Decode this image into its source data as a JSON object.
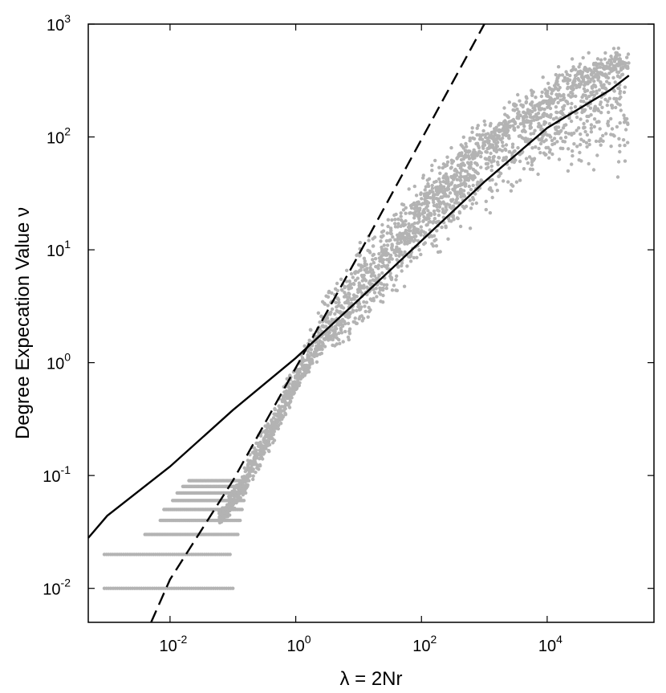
{
  "chart_data": {
    "type": "scatter",
    "title": "",
    "xlabel": "λ = 2Nr",
    "ylabel": "Degree Expecation Value ν",
    "x_scale": "log",
    "y_scale": "log",
    "xlim": [
      0.0005,
      500000
    ],
    "ylim": [
      0.005,
      1000
    ],
    "grid": false,
    "legend": "none",
    "x_ticks": [
      {
        "base": "10",
        "exp": "-2",
        "value": 0.01
      },
      {
        "base": "10",
        "exp": "0",
        "value": 1
      },
      {
        "base": "10",
        "exp": "2",
        "value": 100
      },
      {
        "base": "10",
        "exp": "4",
        "value": 10000
      }
    ],
    "y_ticks": [
      {
        "base": "10",
        "exp": "-2",
        "value": 0.01
      },
      {
        "base": "10",
        "exp": "-1",
        "value": 0.1
      },
      {
        "base": "10",
        "exp": "0",
        "value": 1
      },
      {
        "base": "10",
        "exp": "1",
        "value": 10
      },
      {
        "base": "10",
        "exp": "2",
        "value": 100
      },
      {
        "base": "10",
        "exp": "3",
        "value": 1000
      }
    ],
    "colors": {
      "scatter": "#b3b3b3",
      "solid_line": "#000000",
      "dashed_line": "#000000"
    },
    "series": [
      {
        "style": "scatter",
        "description_band": "main point cloud",
        "x": [
          0.001,
          0.004,
          0.01,
          0.03,
          0.05,
          0.08,
          0.1,
          0.15,
          0.2,
          0.3,
          0.5,
          0.7,
          1,
          1.5,
          2,
          3,
          5,
          8,
          10,
          20,
          30,
          50,
          100,
          200,
          500,
          1000,
          2000,
          5000,
          10000,
          20000,
          50000,
          100000,
          200000
        ],
        "y_center": [
          0.01,
          0.015,
          0.02,
          0.03,
          0.04,
          0.05,
          0.06,
          0.08,
          0.12,
          0.18,
          0.3,
          0.45,
          0.65,
          0.9,
          1.3,
          1.8,
          2.5,
          3.5,
          4.2,
          7,
          9,
          13,
          20,
          30,
          50,
          70,
          100,
          140,
          180,
          240,
          300,
          380,
          400
        ],
        "y_low": [
          0.01,
          0.01,
          0.01,
          0.02,
          0.03,
          0.04,
          0.04,
          0.06,
          0.08,
          0.12,
          0.2,
          0.3,
          0.5,
          0.75,
          0.9,
          1.1,
          1.2,
          1.2,
          1.3,
          1.8,
          2.5,
          3.5,
          6,
          8,
          12,
          16,
          20,
          30,
          40,
          40,
          30,
          20,
          15
        ],
        "y_high": [
          0.01,
          0.02,
          0.03,
          0.04,
          0.05,
          0.06,
          0.09,
          0.14,
          0.2,
          0.3,
          0.5,
          0.8,
          1.2,
          2,
          3,
          5,
          8,
          10,
          13,
          20,
          25,
          35,
          50,
          80,
          130,
          180,
          230,
          330,
          450,
          550,
          650,
          700,
          650
        ]
      },
      {
        "style": "solid",
        "x": [
          0.0005,
          0.001,
          0.01,
          0.1,
          1,
          10,
          100,
          1000,
          10000,
          100000,
          200000
        ],
        "y": [
          0.028,
          0.044,
          0.12,
          0.38,
          1.1,
          3.6,
          12,
          40,
          120,
          260,
          350
        ]
      },
      {
        "style": "dashed",
        "x": [
          0.005,
          0.01,
          0.1,
          1,
          10,
          100,
          1000
        ],
        "y": [
          0.005,
          0.012,
          0.09,
          0.9,
          9,
          95,
          1000
        ]
      }
    ]
  }
}
